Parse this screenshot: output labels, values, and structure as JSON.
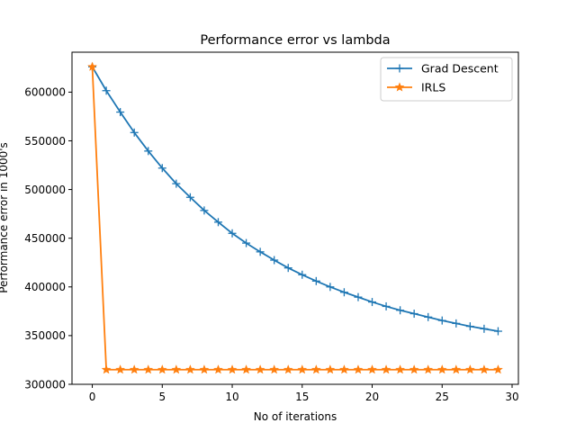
{
  "chart_data": {
    "type": "line",
    "title": "Performance error vs lambda",
    "xlabel": "No of iterations",
    "ylabel": "Performance error in 1000's",
    "xlim": [
      -1.45,
      30.45
    ],
    "ylim": [
      300000,
      641000
    ],
    "xticks": [
      0,
      5,
      10,
      15,
      20,
      25,
      30
    ],
    "yticks": [
      300000,
      350000,
      400000,
      450000,
      500000,
      550000,
      600000
    ],
    "grid": false,
    "legend_position": "top-right",
    "x": [
      0,
      1,
      2,
      3,
      4,
      5,
      6,
      7,
      8,
      9,
      10,
      11,
      12,
      13,
      14,
      15,
      16,
      17,
      18,
      19,
      20,
      21,
      22,
      23,
      24,
      25,
      26,
      27,
      28,
      29
    ],
    "series": [
      {
        "name": "Grad Descent",
        "color": "#1f77b4",
        "marker": "plus",
        "values": [
          626000,
          601500,
          579500,
          558500,
          539500,
          522000,
          506000,
          492000,
          478500,
          466500,
          455000,
          445000,
          436000,
          427500,
          419500,
          412500,
          406000,
          400000,
          394500,
          389500,
          384500,
          380000,
          376000,
          372500,
          369000,
          365500,
          362500,
          359500,
          357000,
          354500
        ]
      },
      {
        "name": "IRLS",
        "color": "#ff7f0e",
        "marker": "star",
        "values": [
          626000,
          315000,
          315000,
          315000,
          315000,
          315000,
          315000,
          315000,
          315000,
          315000,
          315000,
          315000,
          315000,
          315000,
          315000,
          315000,
          315000,
          315000,
          315000,
          315000,
          315000,
          315000,
          315000,
          315000,
          315000,
          315000,
          315000,
          315000,
          315000,
          315000
        ]
      }
    ]
  }
}
